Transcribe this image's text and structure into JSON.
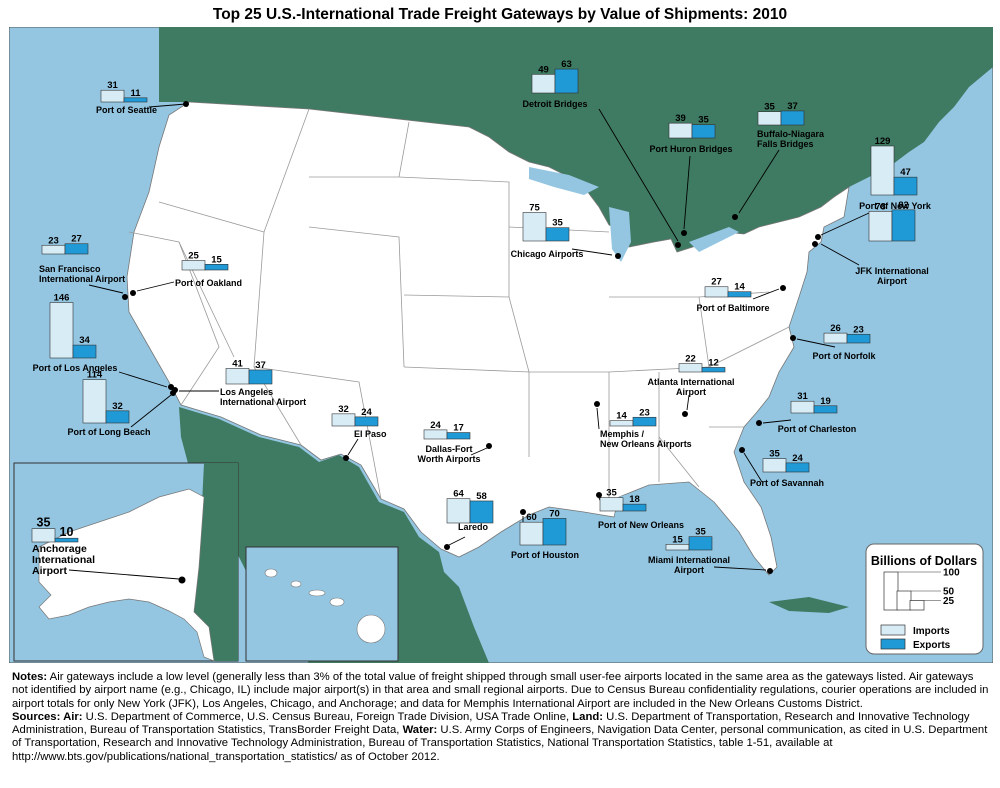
{
  "title": "Top 25 U.S.-International Trade Freight Gateways by Value of Shipments: 2010",
  "colors": {
    "water": "#94c6e2",
    "land_foreign": "#3f7a62",
    "land_us": "#ffffff",
    "state_border": "#9a9a9a",
    "imports": "#d8ecf6",
    "exports": "#1f9ad6"
  },
  "chart_data": {
    "type": "map-bar",
    "unit": "Billions of Dollars",
    "legend": {
      "title": "Billions of Dollars",
      "scale_labels": [
        "100",
        "50",
        "25"
      ],
      "scale_values": [
        100,
        50,
        25
      ],
      "imports_label": "Imports",
      "exports_label": "Exports"
    },
    "gateways": [
      {
        "name": "Port of Seattle",
        "imports": 31,
        "exports": 11
      },
      {
        "name": "Detroit Bridges",
        "imports": 49,
        "exports": 63
      },
      {
        "name": "Port Huron Bridges",
        "imports": 39,
        "exports": 35
      },
      {
        "name": "Buffalo-Niagara Falls Bridges",
        "imports": 35,
        "exports": 37
      },
      {
        "name": "Port of New York",
        "imports": 129,
        "exports": 47
      },
      {
        "name": "Chicago Airports",
        "imports": 75,
        "exports": 35
      },
      {
        "name": "JFK International Airport",
        "imports": 78,
        "exports": 82
      },
      {
        "name": "San Francisco International Airport",
        "imports": 23,
        "exports": 27
      },
      {
        "name": "Port of Oakland",
        "imports": 25,
        "exports": 15
      },
      {
        "name": "Port of Baltimore",
        "imports": 27,
        "exports": 14
      },
      {
        "name": "Port of Los Angeles",
        "imports": 146,
        "exports": 34
      },
      {
        "name": "Port of Norfolk",
        "imports": 26,
        "exports": 23
      },
      {
        "name": "Los Angeles International Airport",
        "imports": 41,
        "exports": 37
      },
      {
        "name": "Atlanta International Airport",
        "imports": 22,
        "exports": 12
      },
      {
        "name": "Port of Long Beach",
        "imports": 114,
        "exports": 32
      },
      {
        "name": "El Paso",
        "imports": 32,
        "exports": 24
      },
      {
        "name": "Dallas-Fort Worth Airports",
        "imports": 24,
        "exports": 17
      },
      {
        "name": "Memphis / New Orleans Airports",
        "imports": 14,
        "exports": 23
      },
      {
        "name": "Port of Charleston",
        "imports": 31,
        "exports": 19
      },
      {
        "name": "Port of Savannah",
        "imports": 35,
        "exports": 24
      },
      {
        "name": "Laredo",
        "imports": 64,
        "exports": 58
      },
      {
        "name": "Port of New Orleans",
        "imports": 35,
        "exports": 18
      },
      {
        "name": "Port of Houston",
        "imports": 60,
        "exports": 70
      },
      {
        "name": "Miami International Airport",
        "imports": 15,
        "exports": 35
      },
      {
        "name": "Anchorage International Airport",
        "imports": 35,
        "exports": 10
      }
    ]
  },
  "notes": {
    "notes_label": "Notes:",
    "notes_text": " Air gateways include a low level (generally less than 3% of the total value of freight shipped through small user-fee airports located in the same area as the gateways listed.  Air gateways not identified by airport name (e.g., Chicago, IL) include major airport(s) in that area and small regional airports.  Due to Census Bureau confidentiality regulations, courier operations are included in airport totals for only New York (JFK), Los Angeles, Chicago, and Anchorage; and data for Memphis International Airport are included in the New Orleans Customs District.",
    "sources_label": "Sources:",
    "air_label": " Air:",
    "air_text": " U.S. Department of Commerce, U.S. Census Bureau, Foreign Trade Division, USA Trade Online, ",
    "land_label": "Land:",
    "land_text": " U.S. Department of Transportation, Research and Innovative Technology Administration, Bureau of Transportation Statistics, TransBorder Freight Data, ",
    "water_label": "Water:",
    "water_text": " U.S. Army Corps of Engineers, Navigation Data Center, personal communication, as cited in U.S. Department of Transportation, Research and Innovative Technology Administration, Bureau of Transportation Statistics, National Transportation Statistics, table 1-51, available at http://www.bts.gov/publications/national_transportation_statistics/ as of October 2012."
  }
}
